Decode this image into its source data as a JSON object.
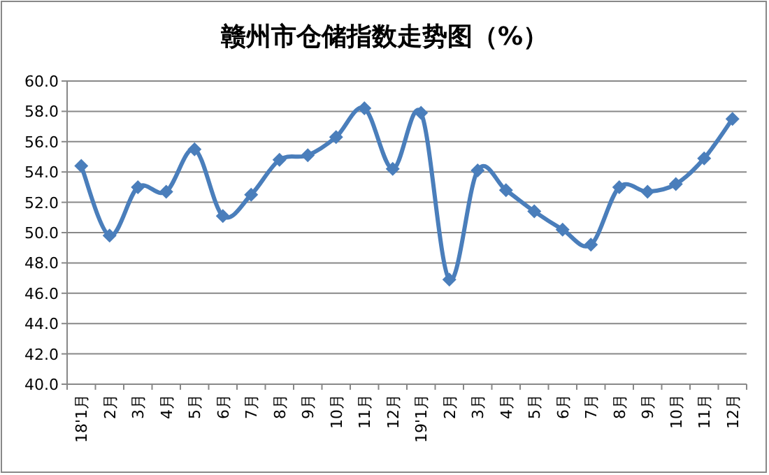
{
  "chart_data": {
    "type": "line",
    "title": "赣州市仓储指数走势图（%）",
    "categories": [
      "18'1月",
      "2月",
      "3月",
      "4月",
      "5月",
      "6月",
      "7月",
      "8月",
      "9月",
      "10月",
      "11月",
      "12月",
      "19'1月",
      "2月",
      "3月",
      "4月",
      "5月",
      "6月",
      "7月",
      "8月",
      "9月",
      "10月",
      "11月",
      "12月"
    ],
    "series": [
      {
        "color": "#4a7ebb",
        "values": [
          54.4,
          49.8,
          53.0,
          52.7,
          55.5,
          51.1,
          52.5,
          54.8,
          55.1,
          56.3,
          58.2,
          54.2,
          57.9,
          46.9,
          54.1,
          52.8,
          51.4,
          50.2,
          49.2,
          53.0,
          52.7,
          53.2,
          54.9,
          57.5
        ]
      }
    ],
    "ylim": [
      40,
      60
    ],
    "yticks": [
      {
        "value": 40,
        "label": "40.0"
      },
      {
        "value": 42,
        "label": "42.0"
      },
      {
        "value": 44,
        "label": "44.0"
      },
      {
        "value": 46,
        "label": "46.0"
      },
      {
        "value": 48,
        "label": "48.0"
      },
      {
        "value": 50,
        "label": "50.0"
      },
      {
        "value": 52,
        "label": "52.0"
      },
      {
        "value": 54,
        "label": "54.0"
      },
      {
        "value": 56,
        "label": "56.0"
      },
      {
        "value": 58,
        "label": "58.0"
      },
      {
        "value": 60,
        "label": "60.0"
      }
    ],
    "grid": "y",
    "marker": "diamond",
    "line_style": "solid"
  }
}
